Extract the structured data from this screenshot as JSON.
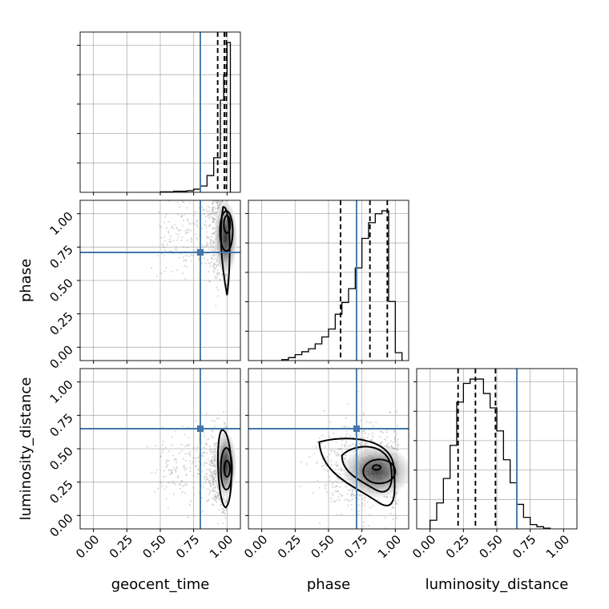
{
  "chart_data": {
    "type": "corner",
    "parameters": [
      "geocent_time",
      "phase",
      "luminosity_distance"
    ],
    "axis_range": [
      -0.1,
      1.1
    ],
    "tick_labels": [
      "0.00",
      "0.25",
      "0.50",
      "0.75",
      "1.00"
    ],
    "tick_values": [
      0,
      0.25,
      0.5,
      0.75,
      1.0
    ],
    "grid": true,
    "truth_color": "#4477aa",
    "truths": {
      "geocent_time": 0.8,
      "phase": 0.71,
      "luminosity_distance": 0.65
    },
    "quantiles": {
      "geocent_time": [
        0.93,
        0.98,
        0.995
      ],
      "phase": [
        0.59,
        0.81,
        0.94
      ],
      "luminosity_distance": [
        0.21,
        0.34,
        0.49
      ]
    },
    "histograms": {
      "geocent_time": {
        "bin_edges": [
          0.5,
          0.6,
          0.7,
          0.75,
          0.8,
          0.85,
          0.9,
          0.95,
          0.975,
          1.0,
          1.025
        ],
        "counts": [
          0.5,
          1,
          1.5,
          3,
          6,
          16,
          33,
          88,
          112,
          143
        ]
      },
      "phase": {
        "bin_edges": [
          0.15,
          0.2,
          0.25,
          0.3,
          0.35,
          0.4,
          0.45,
          0.5,
          0.55,
          0.6,
          0.65,
          0.7,
          0.75,
          0.8,
          0.85,
          0.9,
          0.95,
          1.0,
          1.05
        ],
        "counts": [
          1,
          3,
          6,
          9,
          12,
          17,
          24,
          32,
          47,
          59,
          73,
          94,
          124,
          140,
          149,
          152,
          60,
          8
        ]
      },
      "luminosity_distance": {
        "bin_edges": [
          0.0,
          0.05,
          0.1,
          0.15,
          0.2,
          0.25,
          0.3,
          0.35,
          0.4,
          0.45,
          0.5,
          0.55,
          0.6,
          0.65,
          0.7,
          0.75,
          0.8,
          0.85,
          0.9
        ],
        "counts": [
          6,
          18,
          35,
          58,
          88,
          101,
          104,
          104,
          94,
          84,
          68,
          48,
          32,
          17,
          8,
          3,
          1.5,
          0.5
        ]
      }
    }
  }
}
